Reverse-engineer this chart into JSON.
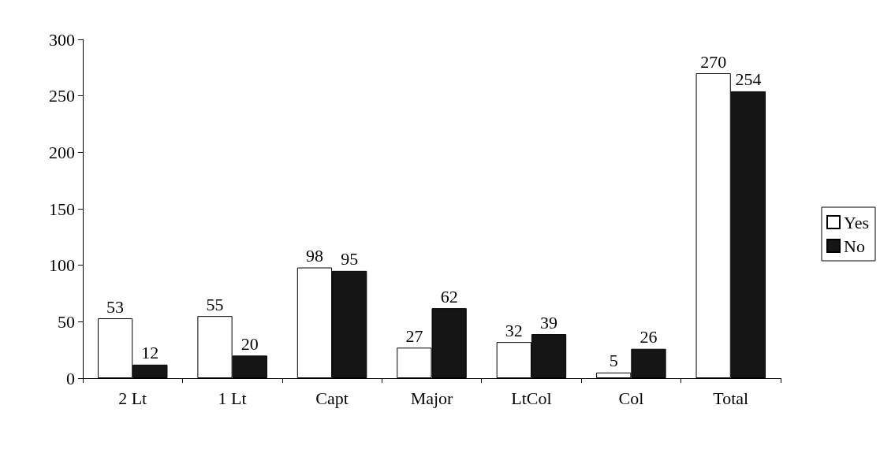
{
  "chart_data": {
    "type": "bar",
    "categories": [
      "2 Lt",
      "1 Lt",
      "Capt",
      "Major",
      "LtCol",
      "Col",
      "Total"
    ],
    "series": [
      {
        "name": "Yes",
        "color": "#ffffff",
        "values": [
          53,
          55,
          98,
          27,
          32,
          5,
          270
        ]
      },
      {
        "name": "No",
        "color": "#151515",
        "values": [
          12,
          20,
          95,
          62,
          39,
          26,
          254
        ]
      }
    ],
    "ylim": [
      0,
      300
    ],
    "yticks": [
      0,
      50,
      100,
      150,
      200,
      250,
      300
    ],
    "grid": false,
    "legend": "right",
    "data_labels": true
  }
}
